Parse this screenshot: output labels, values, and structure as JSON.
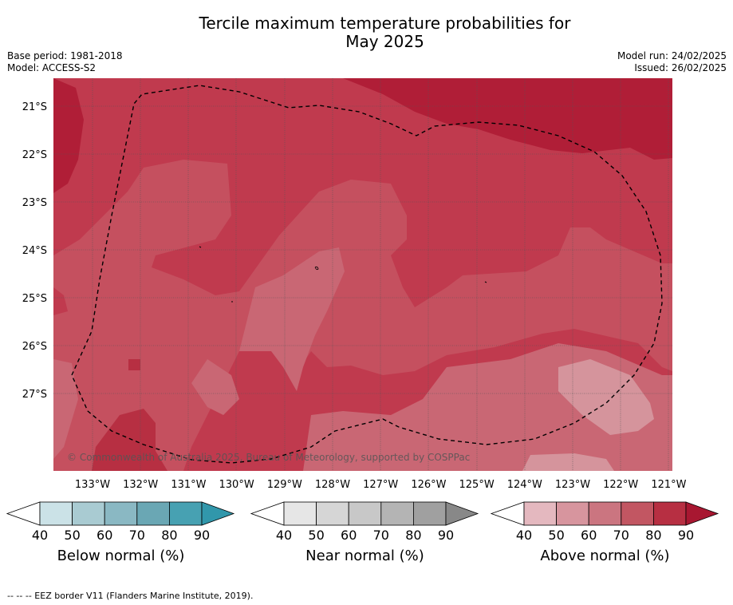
{
  "title_line1": "Tercile maximum temperature probabilities for",
  "title_line2": "May 2025",
  "base_period": "Base period: 1981-2018",
  "model": "Model: ACCESS-S2",
  "model_run": "Model run: 24/02/2025",
  "issued": "Issued: 26/02/2025",
  "copyright": "© Commonwealth of Australia 2025, Bureau of Meteorology, supported by COSPPac",
  "lat_labels": [
    "21°S",
    "22°S",
    "23°S",
    "24°S",
    "25°S",
    "26°S",
    "27°S"
  ],
  "lon_labels": [
    "133°W",
    "132°W",
    "131°W",
    "130°W",
    "129°W",
    "128°W",
    "127°W",
    "126°W",
    "125°W",
    "124°W",
    "123°W",
    "122°W",
    "121°W"
  ],
  "colorbars": [
    {
      "name": "below",
      "title": "Below normal (%)",
      "ticks": [
        "40",
        "50",
        "60",
        "70",
        "80",
        "90"
      ],
      "colors": [
        "#cbe2e7",
        "#a9cbd2",
        "#8ab8c3",
        "#6aa7b4",
        "#47a1b2",
        "#3197ab"
      ]
    },
    {
      "name": "near",
      "title": "Near normal (%)",
      "ticks": [
        "40",
        "50",
        "60",
        "70",
        "80",
        "90"
      ],
      "colors": [
        "#e6e6e6",
        "#d6d6d6",
        "#c8c8c8",
        "#b4b4b4",
        "#a0a0a0",
        "#888888"
      ]
    },
    {
      "name": "above",
      "title": "Above normal (%)",
      "ticks": [
        "40",
        "50",
        "60",
        "70",
        "80",
        "90"
      ],
      "colors": [
        "#e4b8bf",
        "#d7959e",
        "#cb7580",
        "#c25662",
        "#b72f42",
        "#a81731"
      ]
    }
  ],
  "footnote": "--  --  -- EEZ border V11 (Flanders Marine Institute, 2019)."
}
